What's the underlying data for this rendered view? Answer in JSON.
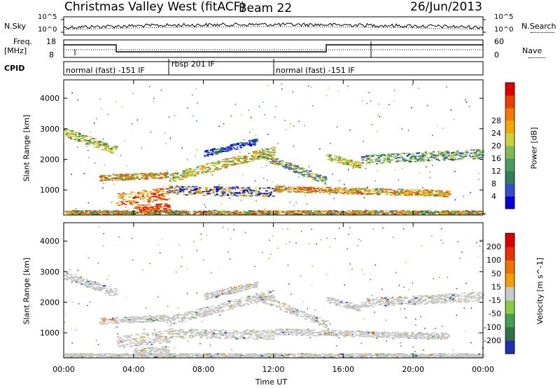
{
  "header": {
    "station": "Christmas Valley West (fitACF)",
    "beam": "Beam 22",
    "date": "26/Jun/2013"
  },
  "panels": {
    "nsky_label": "N.Sky",
    "nsearch_label": "N.Search",
    "noise_ticks": [
      "10^5",
      "10^0"
    ],
    "freq_label_1": "Freq.",
    "freq_label_2": "[MHz]",
    "freq_ticks": [
      "18",
      "8"
    ],
    "nave_label": "Nave",
    "nave_ticks": [
      "60",
      "0"
    ],
    "cpid_label": "CPID",
    "cpid_segments": [
      {
        "label": "normal (fast) -151 IF",
        "start_h": 0,
        "end_h": 6
      },
      {
        "label": "rbsp 201 IF",
        "start_h": 6,
        "end_h": 12
      },
      {
        "label": "normal (fast) -151 IF",
        "start_h": 12,
        "end_h": 24
      }
    ]
  },
  "chart_data": [
    {
      "type": "heatmap",
      "name": "power",
      "ylabel": "Slant Range [km]",
      "ylim": [
        180,
        4600
      ],
      "yticks": [
        1000,
        2000,
        3000,
        4000
      ],
      "colorbar_label": "Power [dB]",
      "colorbar_ticks": [
        "4",
        "8",
        "12",
        "16",
        "20",
        "24",
        "28"
      ],
      "colorbar_colors": [
        "#0000dd",
        "#3050d0",
        "#2f7e58",
        "#4a9a60",
        "#7dbb55",
        "#c9d23a",
        "#f2a800",
        "#f47a00",
        "#ee3b00",
        "#e00000"
      ]
    },
    {
      "type": "heatmap",
      "name": "velocity",
      "xlabel": "Time UT",
      "ylabel": "Slant Range [km]",
      "ylim": [
        180,
        4600
      ],
      "yticks": [
        1000,
        2000,
        3000,
        4000
      ],
      "xticks": [
        "00:00",
        "04:00",
        "08:00",
        "12:00",
        "16:00",
        "20:00",
        "00:00"
      ],
      "colorbar_label": "Velocity [m s^-1]",
      "colorbar_ticks": [
        "200",
        "100",
        "50",
        "15",
        "-15",
        "-50",
        "-100",
        "-200"
      ],
      "colorbar_colors": [
        "#2030b0",
        "#2f6f4a",
        "#3fa050",
        "#86cc3e",
        "#c8c8c8",
        "#f2a000",
        "#f07000",
        "#e83000",
        "#d80000"
      ]
    }
  ]
}
